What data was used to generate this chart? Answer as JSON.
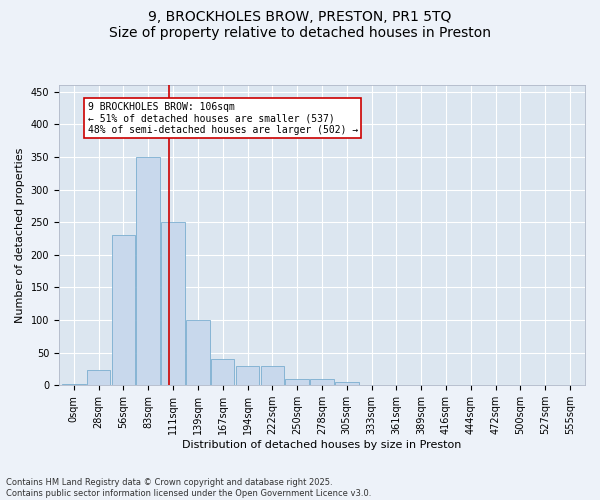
{
  "title": "9, BROCKHOLES BROW, PRESTON, PR1 5TQ",
  "subtitle": "Size of property relative to detached houses in Preston",
  "xlabel": "Distribution of detached houses by size in Preston",
  "ylabel": "Number of detached properties",
  "bar_color": "#c8d8ec",
  "bar_edge_color": "#7aaed0",
  "bg_color": "#dce6f0",
  "grid_color": "#ffffff",
  "fig_bg_color": "#edf2f9",
  "categories": [
    "0sqm",
    "28sqm",
    "56sqm",
    "83sqm",
    "111sqm",
    "139sqm",
    "167sqm",
    "194sqm",
    "222sqm",
    "250sqm",
    "278sqm",
    "305sqm",
    "333sqm",
    "361sqm",
    "389sqm",
    "416sqm",
    "444sqm",
    "472sqm",
    "500sqm",
    "527sqm",
    "555sqm"
  ],
  "values": [
    2,
    24,
    230,
    350,
    250,
    100,
    40,
    30,
    30,
    10,
    10,
    5,
    0,
    1,
    0,
    0,
    0,
    0,
    0,
    0,
    1
  ],
  "ylim": [
    0,
    460
  ],
  "vline_x": 3.82,
  "vline_color": "#cc0000",
  "annotation_line1": "9 BROCKHOLES BROW: 106sqm",
  "annotation_line2": "← 51% of detached houses are smaller (537)",
  "annotation_line3": "48% of semi-detached houses are larger (502) →",
  "annotation_box_color": "#ffffff",
  "annotation_box_edge": "#cc0000",
  "footer_text": "Contains HM Land Registry data © Crown copyright and database right 2025.\nContains public sector information licensed under the Open Government Licence v3.0.",
  "title_fontsize": 10,
  "tick_fontsize": 7,
  "ylabel_fontsize": 8,
  "xlabel_fontsize": 8,
  "annot_fontsize": 7,
  "footer_fontsize": 6
}
